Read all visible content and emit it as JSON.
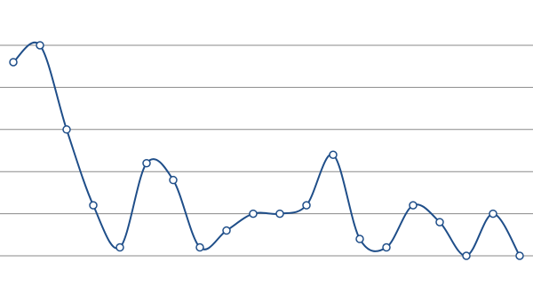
{
  "chart_data": {
    "type": "line",
    "categories": [
      null,
      null,
      null,
      null,
      null,
      null,
      null,
      null,
      null,
      null,
      null,
      null,
      null,
      null,
      null,
      null,
      null,
      null,
      null,
      null
    ],
    "values": [
      4.6,
      5.0,
      3.0,
      1.2,
      0.2,
      2.2,
      1.8,
      0.2,
      0.6,
      1.0,
      1.0,
      1.2,
      2.4,
      0.4,
      0.2,
      1.2,
      0.8,
      0,
      1.0,
      0
    ],
    "color": "#1f4e89",
    "ylim": [
      0,
      5
    ],
    "yticks": [
      0,
      1,
      2,
      3,
      4,
      5
    ],
    "grid": true
  }
}
